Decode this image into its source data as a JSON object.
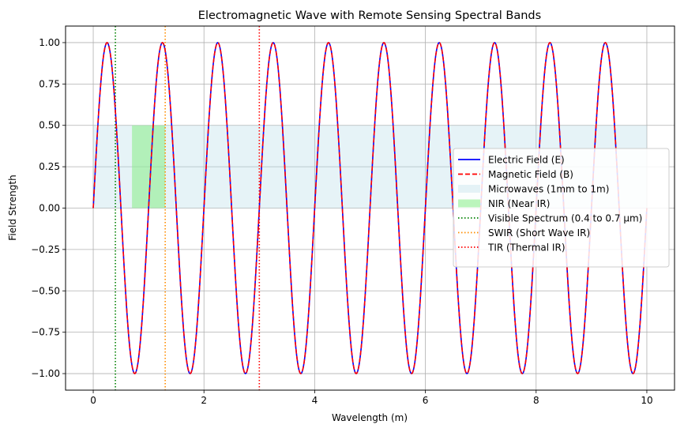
{
  "chart_data": {
    "type": "line",
    "title": "Electromagnetic Wave with Remote Sensing Spectral Bands",
    "xlabel": "Wavelength (m)",
    "ylabel": "Field Strength",
    "xlim": [
      -0.5,
      10.5
    ],
    "ylim": [
      -1.1,
      1.1
    ],
    "grid": true,
    "xticks": [
      0,
      2,
      4,
      6,
      8,
      10
    ],
    "xtick_labels": [
      "0",
      "2",
      "4",
      "6",
      "8",
      "10"
    ],
    "yticks": [
      1.0,
      0.75,
      0.5,
      0.25,
      0.0,
      -0.25,
      -0.5,
      -0.75,
      -1.0
    ],
    "ytick_labels": [
      "1.00",
      "0.75",
      "0.50",
      "0.25",
      "0.00",
      "−0.25",
      "−0.50",
      "−0.75",
      "−1.00"
    ],
    "series": [
      {
        "name": "Electric Field (E)",
        "function": "sin(2*pi*x)",
        "x_range": [
          0,
          10
        ],
        "color": "#0000ff",
        "style": "solid"
      },
      {
        "name": "Magnetic Field (B)",
        "function": "sin(2*pi*x)",
        "x_range": [
          0,
          10
        ],
        "color": "#ff0000",
        "style": "dashed"
      }
    ],
    "spans": [
      {
        "name": "Microwaves (1mm to 1m)",
        "x": [
          0,
          10
        ],
        "y": [
          0,
          0.5
        ],
        "color": "#add8e6",
        "opacity": 0.3
      },
      {
        "name": "NIR (Near IR)",
        "x": [
          0.7,
          1.3
        ],
        "y": [
          0,
          0.5
        ],
        "color": "#90ee90",
        "opacity": 0.6
      }
    ],
    "vlines": [
      {
        "name": "Visible Spectrum (0.4 to 0.7 µm)",
        "x": 0.4,
        "color": "#008000"
      },
      {
        "name": "SWIR (Short Wave IR)",
        "x": 1.3,
        "color": "#ff8c00"
      },
      {
        "name": "TIR (Thermal IR)",
        "x": 3.0,
        "color": "#ff0000"
      }
    ],
    "legend_position": "center-right"
  }
}
